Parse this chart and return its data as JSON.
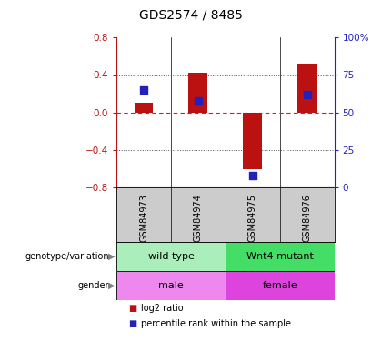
{
  "title": "GDS2574 / 8485",
  "samples": [
    "GSM84973",
    "GSM84974",
    "GSM84975",
    "GSM84976"
  ],
  "log2_ratio": [
    0.1,
    0.42,
    -0.6,
    0.52
  ],
  "percentile_rank": [
    65,
    58,
    8,
    62
  ],
  "ylim_left": [
    -0.8,
    0.8
  ],
  "ylim_right": [
    0,
    100
  ],
  "yticks_left": [
    -0.8,
    -0.4,
    0.0,
    0.4,
    0.8
  ],
  "yticks_right": [
    0,
    25,
    50,
    75,
    100
  ],
  "ytick_labels_right": [
    "0",
    "25",
    "50",
    "75",
    "100%"
  ],
  "bar_color": "#bb1111",
  "dot_color": "#2222bb",
  "zero_line_color": "#cc2222",
  "dotted_line_color": "#555555",
  "genotype_groups": [
    {
      "label": "wild type",
      "samples": [
        0,
        1
      ],
      "color": "#aaeebb"
    },
    {
      "label": "Wnt4 mutant",
      "samples": [
        2,
        3
      ],
      "color": "#44dd66"
    }
  ],
  "gender_groups": [
    {
      "label": "male",
      "samples": [
        0,
        1
      ],
      "color": "#ee88ee"
    },
    {
      "label": "female",
      "samples": [
        2,
        3
      ],
      "color": "#dd44dd"
    }
  ],
  "left_labels": [
    "genotype/variation",
    "gender"
  ],
  "legend_items": [
    {
      "label": "log2 ratio",
      "color": "#bb1111"
    },
    {
      "label": "percentile rank within the sample",
      "color": "#2222bb"
    }
  ],
  "bar_width": 0.35,
  "dot_size": 40,
  "background_color": "#ffffff",
  "panel_bg": "#cccccc",
  "plot_bg": "#ffffff"
}
